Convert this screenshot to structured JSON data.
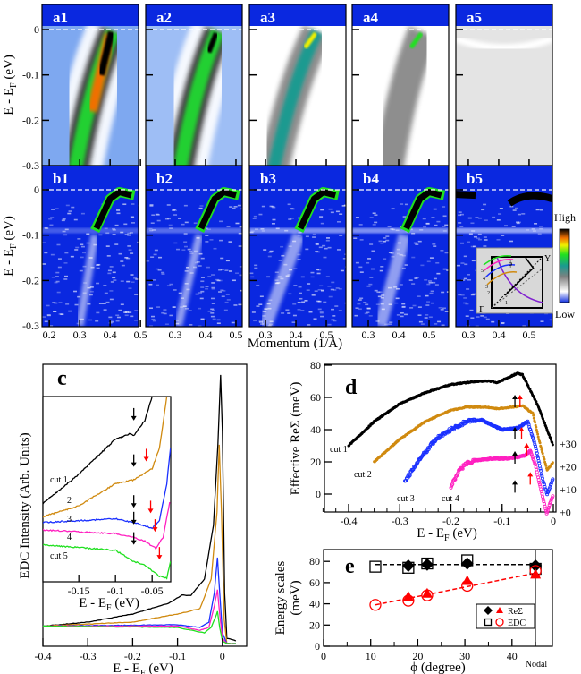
{
  "figure": {
    "top_ylabel": {
      "pre": "E - E",
      "sub": "F",
      "post": " (eV)"
    },
    "top_yticks": [
      "0",
      "-0.1",
      "-0.2",
      "-0.3"
    ],
    "momentum_label": "Momentum (1/Å)",
    "colorbar": {
      "high": "High",
      "low": "Low",
      "colors": [
        "#1030e0",
        "#ffffff",
        "#808080",
        "#1a9a90",
        "#20e020",
        "#f0f000",
        "#f07000",
        "#000000"
      ]
    },
    "inset_bz": {
      "gamma": "Γ",
      "y": "Y",
      "phi": "ϕ",
      "cuts": [
        "1",
        "2",
        "3",
        "4",
        "5"
      ],
      "cut_colors": [
        "#000000",
        "#d08a10",
        "#1a30ff",
        "#ff20c0",
        "#20e020"
      ],
      "fs_color": "#8020d0"
    }
  },
  "chart_data": [
    {
      "type": "heatmap",
      "panel": "a",
      "labels": [
        "a1",
        "a2",
        "a3",
        "a4",
        "a5"
      ],
      "ylabel": "E - EF (eV)",
      "ylim": [
        -0.3,
        0.03
      ],
      "xlabel": "Momentum (1/Å)",
      "xticks": [
        [
          "0.2",
          "0.3",
          "0.4",
          "0.5"
        ],
        [
          "0.3",
          "0.4",
          "0.5"
        ],
        [
          "0.3",
          "0.4",
          "0.5"
        ],
        [
          "0.3",
          "0.4",
          "0.5"
        ],
        [
          "0.3",
          "0.4",
          "0.5"
        ]
      ],
      "kF": [
        0.41,
        0.44,
        0.47,
        0.48,
        null
      ],
      "k_at_minus_0.3": [
        0.3,
        0.33,
        0.34,
        0.38,
        null
      ]
    },
    {
      "type": "heatmap",
      "panel": "b",
      "labels": [
        "b1",
        "b2",
        "b3",
        "b4",
        "b5"
      ],
      "ylabel": "E - EF (eV)",
      "ylim": [
        -0.3,
        0.03
      ],
      "xticks": [
        [
          "0.2",
          "0.3",
          "0.4",
          "0.5"
        ],
        [
          "0.3",
          "0.4",
          "0.5"
        ],
        [
          "0.3",
          "0.4",
          "0.5"
        ],
        [
          "0.3",
          "0.4",
          "0.5"
        ],
        [
          "0.3",
          "0.4",
          "0.5"
        ]
      ]
    },
    {
      "type": "line",
      "panel": "c",
      "label": "c",
      "ylabel": "EDC Intensity (Arb. Units)",
      "xlabel": {
        "pre": "E - E",
        "sub": "F",
        "post": "  (eV)"
      },
      "xlim": [
        -0.4,
        0.05
      ],
      "xticks": [
        "-0.4",
        "-0.3",
        "-0.2",
        "-0.1",
        "0"
      ],
      "series": [
        {
          "color": "#000000",
          "points": [
            [
              -0.4,
              0.075
            ],
            [
              -0.3,
              0.09
            ],
            [
              -0.2,
              0.12
            ],
            [
              -0.12,
              0.16
            ],
            [
              -0.09,
              0.19
            ],
            [
              -0.07,
              0.19
            ],
            [
              -0.04,
              0.25
            ],
            [
              -0.02,
              0.45
            ],
            [
              -0.01,
              0.75
            ],
            [
              -0.004,
              1.01
            ],
            [
              0.0,
              0.8
            ],
            [
              0.005,
              0.2
            ],
            [
              0.01,
              0.03
            ],
            [
              0.03,
              0.02
            ]
          ]
        },
        {
          "color": "#d08a10",
          "points": [
            [
              -0.4,
              0.075
            ],
            [
              -0.2,
              0.09
            ],
            [
              -0.1,
              0.12
            ],
            [
              -0.05,
              0.14
            ],
            [
              -0.025,
              0.25
            ],
            [
              -0.012,
              0.5
            ],
            [
              -0.007,
              0.75
            ],
            [
              -0.002,
              0.5
            ],
            [
              0.004,
              0.1
            ],
            [
              0.01,
              0.01
            ],
            [
              0.03,
              0.01
            ]
          ]
        },
        {
          "color": "#1a30ff",
          "points": [
            [
              -0.4,
              0.075
            ],
            [
              -0.1,
              0.08
            ],
            [
              -0.05,
              0.07
            ],
            [
              -0.03,
              0.09
            ],
            [
              -0.018,
              0.2
            ],
            [
              -0.011,
              0.33
            ],
            [
              -0.006,
              0.2
            ],
            [
              0.0,
              0.05
            ],
            [
              0.01,
              0.01
            ],
            [
              0.03,
              0.01
            ]
          ]
        },
        {
          "color": "#ff20c0",
          "points": [
            [
              -0.4,
              0.075
            ],
            [
              -0.1,
              0.075
            ],
            [
              -0.05,
              0.06
            ],
            [
              -0.03,
              0.07
            ],
            [
              -0.018,
              0.15
            ],
            [
              -0.011,
              0.21
            ],
            [
              -0.006,
              0.12
            ],
            [
              0,
              0.03
            ],
            [
              0.01,
              0.01
            ],
            [
              0.03,
              0.01
            ]
          ]
        },
        {
          "color": "#20e020",
          "points": [
            [
              -0.4,
              0.075
            ],
            [
              -0.1,
              0.07
            ],
            [
              -0.04,
              0.05
            ],
            [
              -0.025,
              0.07
            ],
            [
              -0.015,
              0.11
            ],
            [
              -0.011,
              0.13
            ],
            [
              -0.006,
              0.07
            ],
            [
              0,
              0.02
            ],
            [
              0.01,
              0.01
            ],
            [
              0.03,
              0.01
            ]
          ]
        }
      ],
      "inset": {
        "xlim": [
          -0.199,
          -0.024
        ],
        "xticks": [
          "-0.15",
          "-0.1",
          "-0.05"
        ],
        "xlabel": {
          "pre": "E - E",
          "sub": "F",
          "post": " (eV)"
        },
        "cut_labels": [
          "cut 1",
          "2",
          "3",
          "4",
          "cut 5"
        ],
        "series": [
          {
            "color": "#000000",
            "points": [
              [
                -0.2,
                0.42
              ],
              [
                -0.15,
                0.58
              ],
              [
                -0.1,
                0.77
              ],
              [
                -0.08,
                0.8
              ],
              [
                -0.075,
                0.79
              ],
              [
                -0.06,
                0.87
              ],
              [
                -0.05,
                1.0
              ]
            ]
          },
          {
            "color": "#d08a10",
            "points": [
              [
                -0.2,
                0.35
              ],
              [
                -0.15,
                0.41
              ],
              [
                -0.1,
                0.53
              ],
              [
                -0.075,
                0.55
              ],
              [
                -0.05,
                0.61
              ],
              [
                -0.04,
                0.72
              ],
              [
                -0.03,
                1.0
              ]
            ]
          },
          {
            "color": "#1a30ff",
            "points": [
              [
                -0.2,
                0.32
              ],
              [
                -0.1,
                0.34
              ],
              [
                -0.075,
                0.32
              ],
              [
                -0.05,
                0.29
              ],
              [
                -0.04,
                0.33
              ],
              [
                -0.03,
                0.53
              ],
              [
                -0.025,
                0.72
              ]
            ]
          },
          {
            "color": "#ff20c0",
            "points": [
              [
                -0.2,
                0.28
              ],
              [
                -0.1,
                0.26
              ],
              [
                -0.075,
                0.24
              ],
              [
                -0.06,
                0.22
              ],
              [
                -0.045,
                0.18
              ],
              [
                -0.035,
                0.24
              ],
              [
                -0.026,
                0.43
              ]
            ]
          },
          {
            "color": "#20e020",
            "points": [
              [
                -0.2,
                0.2
              ],
              [
                -0.1,
                0.17
              ],
              [
                -0.075,
                0.11
              ],
              [
                -0.06,
                0.09
              ],
              [
                -0.04,
                0.03
              ],
              [
                -0.03,
                0.02
              ],
              [
                -0.025,
                0.11
              ]
            ]
          }
        ],
        "black_arrows": [
          [
            -0.075,
            0.87
          ],
          [
            -0.075,
            0.62
          ],
          [
            -0.075,
            0.4
          ],
          [
            -0.075,
            0.31
          ],
          [
            -0.075,
            0.2
          ]
        ],
        "red_arrows": [
          [
            -0.058,
            0.65
          ],
          [
            -0.052,
            0.37
          ],
          [
            -0.046,
            0.27
          ],
          [
            -0.04,
            0.12
          ]
        ]
      }
    },
    {
      "type": "scatter",
      "panel": "d",
      "label": "d",
      "ylabel": "Effective ReΣ (meV)",
      "xlabel": {
        "pre": "E - E",
        "sub": "F",
        "post": " (eV)"
      },
      "xlim": [
        -0.45,
        0.0
      ],
      "ylim": [
        -15,
        80
      ],
      "xticks": [
        "-0.4",
        "-0.3",
        "-0.2",
        "-0.1",
        "0"
      ],
      "yticks": [
        "80",
        "60",
        "40",
        "20",
        "0"
      ],
      "offsets": [
        "+30",
        "+20",
        "+10",
        "+0"
      ],
      "series": [
        {
          "name": "cut 1",
          "color": "#000000",
          "points": [
            [
              -0.4,
              30
            ],
            [
              -0.35,
              45
            ],
            [
              -0.3,
              56
            ],
            [
              -0.25,
              63
            ],
            [
              -0.2,
              68
            ],
            [
              -0.15,
              70
            ],
            [
              -0.12,
              70
            ],
            [
              -0.11,
              69
            ],
            [
              -0.09,
              72
            ],
            [
              -0.07,
              75
            ],
            [
              -0.06,
              74
            ],
            [
              -0.03,
              55
            ],
            [
              0,
              30
            ]
          ]
        },
        {
          "name": "cut 2",
          "color": "#d08a10",
          "points": [
            [
              -0.35,
              20
            ],
            [
              -0.3,
              34
            ],
            [
              -0.25,
              45
            ],
            [
              -0.2,
              52
            ],
            [
              -0.17,
              54
            ],
            [
              -0.13,
              54
            ],
            [
              -0.11,
              53
            ],
            [
              -0.08,
              54
            ],
            [
              -0.06,
              55
            ],
            [
              -0.04,
              50
            ],
            [
              -0.025,
              30
            ],
            [
              -0.012,
              15
            ],
            [
              0,
              20
            ]
          ]
        },
        {
          "name": "cut 3",
          "color": "#1a30ff",
          "points": [
            [
              -0.29,
              8
            ],
            [
              -0.26,
              22
            ],
            [
              -0.23,
              34
            ],
            [
              -0.2,
              40
            ],
            [
              -0.17,
              45
            ],
            [
              -0.14,
              46
            ],
            [
              -0.12,
              43
            ],
            [
              -0.1,
              40
            ],
            [
              -0.07,
              41
            ],
            [
              -0.05,
              45
            ],
            [
              -0.035,
              30
            ],
            [
              -0.02,
              8
            ],
            [
              -0.012,
              0
            ],
            [
              0,
              10
            ]
          ]
        },
        {
          "name": "cut 4",
          "color": "#ff20c0",
          "points": [
            [
              -0.2,
              5
            ],
            [
              -0.185,
              14
            ],
            [
              -0.17,
              19
            ],
            [
              -0.15,
              21
            ],
            [
              -0.12,
              22
            ],
            [
              -0.09,
              22
            ],
            [
              -0.07,
              23
            ],
            [
              -0.055,
              24
            ],
            [
              -0.045,
              27
            ],
            [
              -0.035,
              18
            ],
            [
              -0.022,
              0
            ],
            [
              -0.013,
              -12
            ],
            [
              0,
              0
            ]
          ]
        }
      ],
      "black_arrows": [
        [
          -0.075,
          75
        ],
        [
          -0.075,
          55
        ],
        [
          -0.075,
          40
        ],
        [
          -0.075,
          22
        ]
      ],
      "red_arrows": [
        [
          -0.065,
          75
        ],
        [
          -0.062,
          55
        ],
        [
          -0.052,
          45
        ],
        [
          -0.045,
          27
        ]
      ]
    },
    {
      "type": "scatter",
      "panel": "e",
      "label": "e",
      "ylabel": [
        "Energy scales",
        "(meV)"
      ],
      "xlabel": "ϕ (degree)",
      "xlim": [
        0,
        48.5
      ],
      "ylim": [
        0,
        90
      ],
      "xticks": [
        "0",
        "10",
        "20",
        "30",
        "40"
      ],
      "yticks": [
        "0",
        "20",
        "40",
        "60",
        "80"
      ],
      "annotation": "Nodal",
      "nodal_phi": 45,
      "legend": {
        "placement": "bottom-right",
        "entries": [
          "ReΣ",
          "EDC"
        ]
      },
      "series": [
        {
          "name": "ReΣ",
          "color": "#000000",
          "marker": "diamond",
          "points": [
            [
              18,
              76
            ],
            [
              22,
              77
            ],
            [
              30.5,
              78
            ],
            [
              45,
              76
            ]
          ]
        },
        {
          "name": "EDC",
          "color": "#000000",
          "marker": "square-open",
          "points": [
            [
              11,
              75
            ],
            [
              18,
              74
            ],
            [
              22,
              78
            ],
            [
              30.5,
              81
            ],
            [
              45,
              73
            ]
          ]
        },
        {
          "name": "ReΣ",
          "color": "#ff0000",
          "marker": "triangle",
          "points": [
            [
              18,
              47
            ],
            [
              22,
              50
            ],
            [
              30.5,
              62
            ],
            [
              45,
              68
            ]
          ]
        },
        {
          "name": "EDC",
          "color": "#ff0000",
          "marker": "circle-open",
          "points": [
            [
              11,
              39
            ],
            [
              18,
              43
            ],
            [
              22,
              48
            ],
            [
              30.5,
              57
            ],
            [
              45,
              71
            ]
          ]
        }
      ]
    }
  ]
}
